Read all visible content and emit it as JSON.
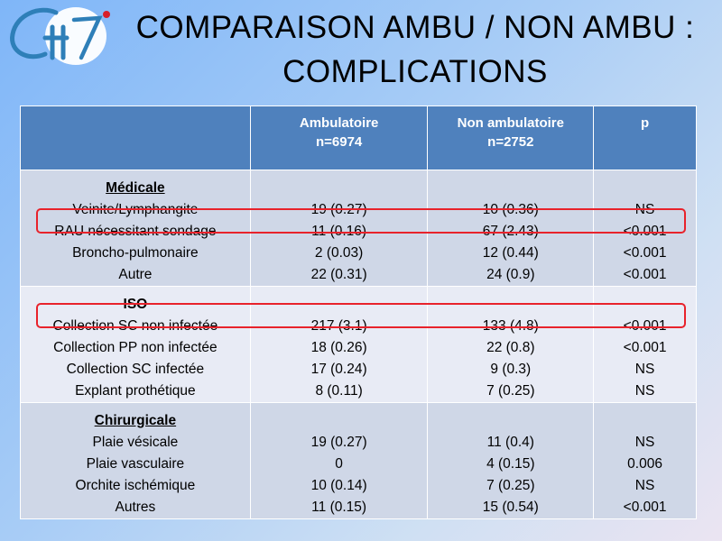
{
  "title": {
    "line1": "COMPARAISON AMBU / NON AMBU :",
    "line2": "COMPLICATIONS"
  },
  "logo": {
    "text": "GH",
    "icon": "logo-icon"
  },
  "table": {
    "headers": [
      "",
      "Ambulatoire\nn=6974",
      "Non ambulatoire\nn=2752",
      "p"
    ],
    "sections": [
      {
        "name": "Médicale",
        "rows": [
          {
            "label": "Veinite/Lymphangite",
            "ambu": "19 (0.27)",
            "non_ambu": "10 (0.36)",
            "p": "NS"
          },
          {
            "label": "RAU nécessitant sondage",
            "ambu": "11 (0.16)",
            "non_ambu": "67 (2.43)",
            "p": "<0.001"
          },
          {
            "label": "Broncho-pulmonaire",
            "ambu": "2 (0.03)",
            "non_ambu": "12 (0.44)",
            "p": "<0.001"
          },
          {
            "label": "Autre",
            "ambu": "22 (0.31)",
            "non_ambu": "24 (0.9)",
            "p": "<0.001"
          }
        ]
      },
      {
        "name": "ISO",
        "rows": [
          {
            "label": "Collection SC non infectée",
            "ambu": "217 (3.1)",
            "non_ambu": "133 (4.8)",
            "p": "<0.001"
          },
          {
            "label": "Collection PP non infectée",
            "ambu": "18 (0.26)",
            "non_ambu": "22 (0.8)",
            "p": "<0.001"
          },
          {
            "label": "Collection SC infectée",
            "ambu": "17 (0.24)",
            "non_ambu": "9 (0.3)",
            "p": "NS"
          },
          {
            "label": "Explant prothétique",
            "ambu": "8 (0.11)",
            "non_ambu": "7 (0.25)",
            "p": "NS"
          }
        ]
      },
      {
        "name": "Chirurgicale",
        "rows": [
          {
            "label": "Plaie vésicale",
            "ambu": "19 (0.27)",
            "non_ambu": "11 (0.4)",
            "p": "NS"
          },
          {
            "label": "Plaie vasculaire",
            "ambu": "0",
            "non_ambu": "4 (0.15)",
            "p": "0.006"
          },
          {
            "label": "Orchite ischémique",
            "ambu": "10 (0.14)",
            "non_ambu": "7 (0.25)",
            "p": "NS"
          },
          {
            "label": "Autres",
            "ambu": "11 (0.15)",
            "non_ambu": "15 (0.54)",
            "p": "<0.001"
          }
        ]
      }
    ],
    "highlighted_rows": [
      "RAU nécessitant sondage",
      "Collection SC non infectée"
    ]
  },
  "colors": {
    "header_bg": "#4f81bd",
    "band_a": "#cfd7e7",
    "band_b": "#e8ebf5",
    "highlight": "#e8222b"
  }
}
